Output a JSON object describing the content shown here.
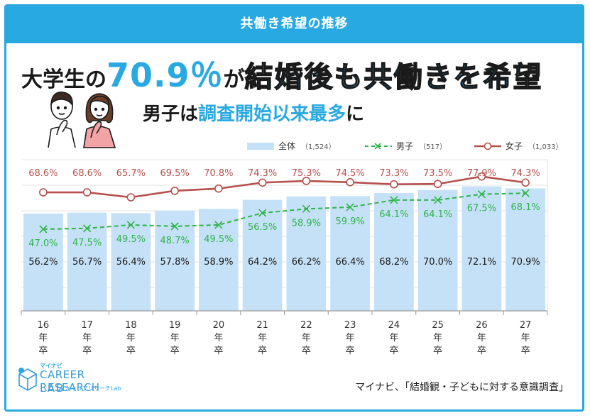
{
  "header": {
    "title": "共働き希望の推移"
  },
  "headline": {
    "part1": "大学生の",
    "part2": "70.9％",
    "part3": "が",
    "part4": "結婚後も共働きを希望"
  },
  "subheadline": {
    "part1": "男子は",
    "part2": "調査開始以来最多",
    "part3": "に"
  },
  "legend": {
    "total_label": "全体",
    "total_count": "（1,524）",
    "male_label": "男子",
    "male_count": "（517）",
    "female_label": "女子",
    "female_count": "（1,033）"
  },
  "colors": {
    "accent": "#29a9e1",
    "bar": "#c5e1f7",
    "male": "#2fb34a",
    "female": "#b5504d",
    "total_label": "#1a1a1a"
  },
  "chart_data": {
    "type": "bar",
    "categories": [
      [
        "16",
        "年",
        "卒"
      ],
      [
        "17",
        "年",
        "卒"
      ],
      [
        "18",
        "年",
        "卒"
      ],
      [
        "19",
        "年",
        "卒"
      ],
      [
        "20",
        "年",
        "卒"
      ],
      [
        "21",
        "年",
        "卒"
      ],
      [
        "22",
        "年",
        "卒"
      ],
      [
        "23",
        "年",
        "卒"
      ],
      [
        "24",
        "年",
        "卒"
      ],
      [
        "25",
        "年",
        "卒"
      ],
      [
        "26",
        "年",
        "卒"
      ],
      [
        "27",
        "年",
        "卒"
      ]
    ],
    "series": [
      {
        "name": "全体",
        "kind": "bar",
        "values": [
          56.2,
          56.7,
          56.4,
          57.8,
          58.9,
          64.2,
          66.2,
          66.4,
          68.2,
          70.0,
          72.1,
          70.9
        ],
        "labels": [
          "56.2%",
          "56.7%",
          "56.4%",
          "57.8%",
          "58.9%",
          "64.2%",
          "66.2%",
          "66.4%",
          "68.2%",
          "70.0%",
          "72.1%",
          "70.9%"
        ]
      },
      {
        "name": "男子",
        "kind": "line-dashed",
        "values": [
          47.0,
          47.5,
          49.5,
          48.7,
          49.5,
          56.5,
          58.9,
          59.9,
          64.1,
          64.1,
          67.5,
          68.1
        ],
        "labels": [
          "47.0%",
          "47.5%",
          "49.5%",
          "48.7%",
          "49.5%",
          "56.5%",
          "58.9%",
          "59.9%",
          "64.1%",
          "64.1%",
          "67.5%",
          "68.1%"
        ]
      },
      {
        "name": "女子",
        "kind": "line",
        "values": [
          68.6,
          68.6,
          65.7,
          69.5,
          70.8,
          74.3,
          75.3,
          74.5,
          73.3,
          73.5,
          77.9,
          74.3
        ],
        "labels": [
          "68.6%",
          "68.6%",
          "65.7%",
          "69.5%",
          "70.8%",
          "74.3%",
          "75.3%",
          "74.5%",
          "73.3%",
          "73.5%",
          "77.9%",
          "74.3%"
        ]
      }
    ],
    "grid": true,
    "legend_position": "top-right"
  },
  "logo": {
    "small": "マイナビ",
    "main": "CAREER RESEARCH",
    "sub": "LAB",
    "kana": "キャリアリサーチLab"
  },
  "source": "マイナビ、「結婚観・子どもに対する意識調査」"
}
